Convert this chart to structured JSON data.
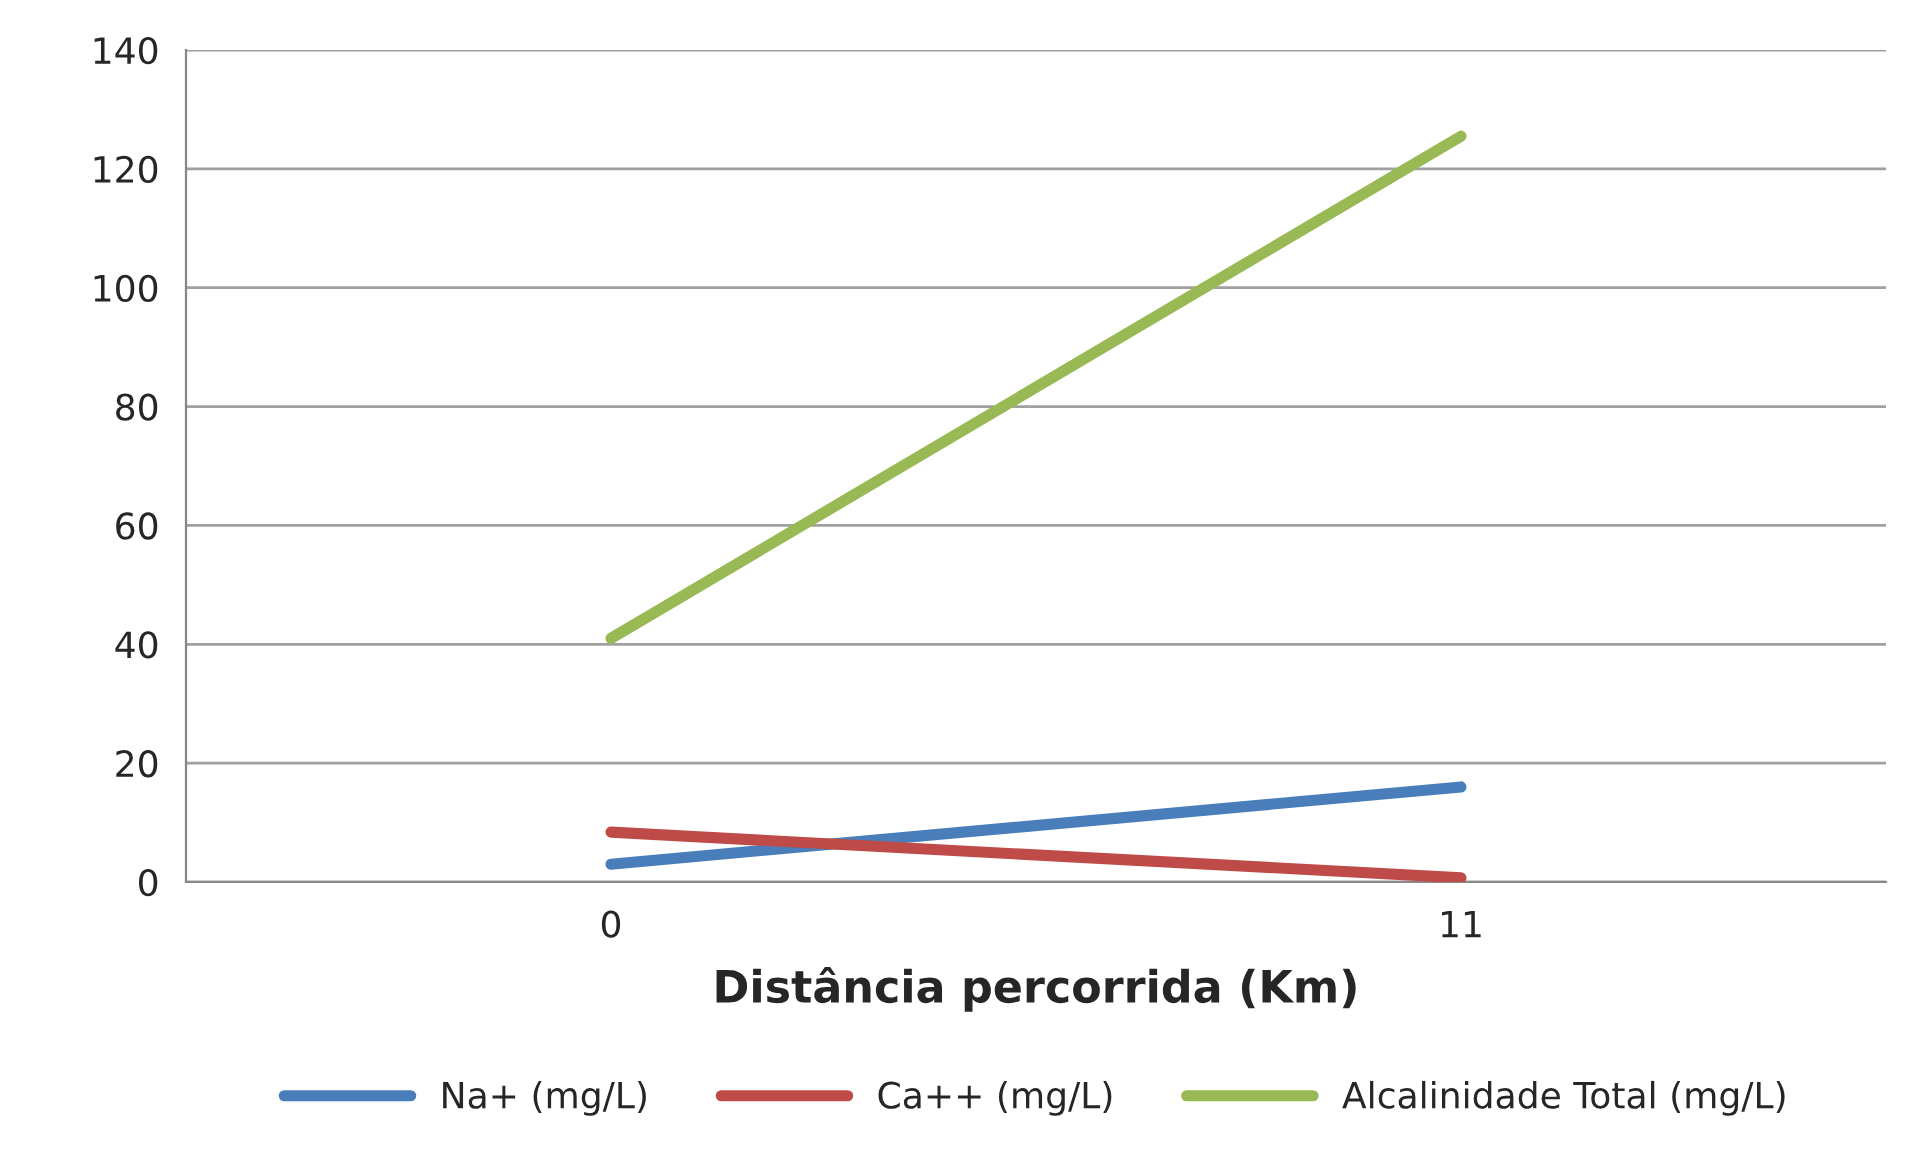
{
  "chart_data": {
    "type": "line",
    "xlabel": "Distância percorrida (Km)",
    "categories": [
      "0",
      "11"
    ],
    "series": [
      {
        "name": "Na+ (mg/L)",
        "color": "#4a7ebb",
        "values": [
          3,
          16
        ]
      },
      {
        "name": "Ca++ (mg/L)",
        "color": "#be4b48",
        "values": [
          8.4,
          0.7
        ]
      },
      {
        "name": "Alcalinidade Total (mg/L)",
        "color": "#98b954",
        "values": [
          41,
          125.5
        ]
      }
    ],
    "ylim": [
      0,
      140
    ],
    "yticks": [
      0,
      20,
      40,
      60,
      80,
      100,
      120,
      140
    ],
    "grid": "y",
    "legend": "bottom"
  }
}
